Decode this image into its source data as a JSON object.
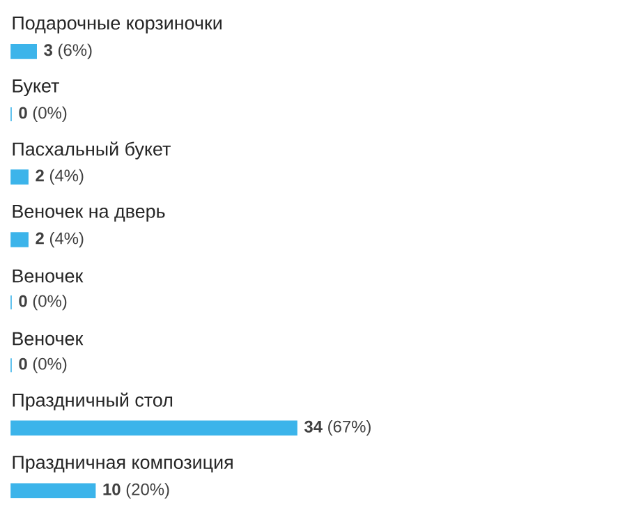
{
  "chart_data": {
    "type": "bar",
    "orientation": "horizontal",
    "color": "#3cb4ea",
    "categories": [
      "Подарочные корзиночки",
      "Букет",
      "Пасхальный букет",
      "Веночек на дверь",
      "Веночек",
      "Веночек",
      "Праздничный стол",
      "Праздничная композиция"
    ],
    "values": [
      3,
      0,
      2,
      2,
      0,
      0,
      34,
      10
    ],
    "value_labels": [
      "**3** (6%)",
      "**0** (0%)",
      "**2** (4%)",
      "**2** (4%)",
      "**0** (0%)",
      "**0** (0%)",
      "**34** (67%)",
      "**10** (20%)"
    ]
  }
}
